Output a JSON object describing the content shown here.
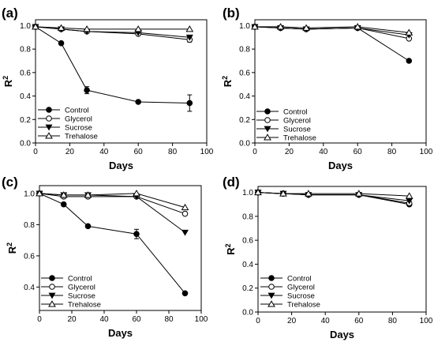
{
  "chart_data": [
    {
      "panel": "(a)",
      "type": "line",
      "xlabel": "Days",
      "ylabel": "R",
      "ylabel_sup": "2",
      "xlim": [
        0,
        100
      ],
      "ylim": [
        0.0,
        1.05
      ],
      "xticks": [
        0,
        20,
        40,
        60,
        80,
        100
      ],
      "yticks": [
        "0.0",
        "0.2",
        "0.4",
        "0.6",
        "0.8",
        "1.0"
      ],
      "yticks_values": [
        0.0,
        0.2,
        0.4,
        0.6,
        0.8,
        1.0
      ],
      "legend_position": "bottom-left",
      "x": [
        0,
        15,
        30,
        60,
        90
      ],
      "series": [
        {
          "name": "Control",
          "marker": "filled-circle",
          "values": [
            0.99,
            0.85,
            0.45,
            0.35,
            0.34
          ],
          "err": [
            0,
            0.01,
            0.03,
            0,
            0.07
          ]
        },
        {
          "name": "Glycerol",
          "marker": "open-circle",
          "values": [
            0.99,
            0.97,
            0.95,
            0.93,
            0.88
          ],
          "err": [
            0,
            0,
            0,
            0,
            0.02
          ]
        },
        {
          "name": "Sucrose",
          "marker": "filled-triangle-down",
          "values": [
            0.99,
            0.97,
            0.95,
            0.94,
            0.9
          ],
          "err": [
            0,
            0,
            0,
            0,
            0
          ]
        },
        {
          "name": "Trehalose",
          "marker": "open-triangle-up",
          "values": [
            0.99,
            0.98,
            0.97,
            0.97,
            0.97
          ],
          "err": [
            0,
            0,
            0,
            0,
            0
          ]
        }
      ]
    },
    {
      "panel": "(b)",
      "type": "line",
      "xlabel": "Days",
      "ylabel": "R",
      "ylabel_sup": "2",
      "xlim": [
        0,
        100
      ],
      "ylim": [
        0.0,
        1.05
      ],
      "xticks": [
        0,
        20,
        40,
        60,
        80,
        100
      ],
      "yticks": [
        "0.0",
        "0.2",
        "0.4",
        "0.6",
        "0.8",
        "1.0"
      ],
      "yticks_values": [
        0.0,
        0.2,
        0.4,
        0.6,
        0.8,
        1.0
      ],
      "legend_position": "bottom-left",
      "x": [
        0,
        15,
        30,
        60,
        90
      ],
      "series": [
        {
          "name": "Control",
          "marker": "filled-circle",
          "values": [
            0.99,
            0.98,
            0.97,
            0.98,
            0.7
          ],
          "err": [
            0,
            0,
            0,
            0,
            0
          ]
        },
        {
          "name": "Glycerol",
          "marker": "open-circle",
          "values": [
            0.99,
            0.98,
            0.97,
            0.98,
            0.89
          ],
          "err": [
            0,
            0,
            0,
            0,
            0
          ]
        },
        {
          "name": "Sucrose",
          "marker": "filled-triangle-down",
          "values": [
            0.99,
            0.98,
            0.97,
            0.98,
            0.92
          ],
          "err": [
            0,
            0,
            0,
            0,
            0
          ]
        },
        {
          "name": "Trehalose",
          "marker": "open-triangle-up",
          "values": [
            0.99,
            0.99,
            0.98,
            0.99,
            0.94
          ],
          "err": [
            0,
            0,
            0,
            0,
            0
          ]
        }
      ]
    },
    {
      "panel": "(c)",
      "type": "line",
      "xlabel": "Days",
      "ylabel": "R",
      "ylabel_sup": "2",
      "xlim": [
        0,
        100
      ],
      "ylim": [
        0.25,
        1.05
      ],
      "xticks": [
        0,
        20,
        40,
        60,
        80,
        100
      ],
      "yticks": [
        "0.4",
        "0.6",
        "0.8",
        "1.0"
      ],
      "yticks_values": [
        0.4,
        0.6,
        0.8,
        1.0
      ],
      "legend_position": "bottom-left",
      "x": [
        0,
        15,
        30,
        60,
        90
      ],
      "series": [
        {
          "name": "Control",
          "marker": "filled-circle",
          "values": [
            1.0,
            0.93,
            0.79,
            0.74,
            0.36
          ],
          "err": [
            0,
            0.01,
            0,
            0.03,
            0
          ]
        },
        {
          "name": "Glycerol",
          "marker": "open-circle",
          "values": [
            1.0,
            0.98,
            0.98,
            0.98,
            0.87
          ],
          "err": [
            0,
            0,
            0,
            0,
            0.01
          ]
        },
        {
          "name": "Sucrose",
          "marker": "filled-triangle-down",
          "values": [
            1.0,
            0.99,
            0.99,
            0.98,
            0.75
          ],
          "err": [
            0,
            0,
            0,
            0,
            0
          ]
        },
        {
          "name": "Trehalose",
          "marker": "open-triangle-up",
          "values": [
            1.0,
            0.99,
            0.99,
            1.0,
            0.91
          ],
          "err": [
            0,
            0,
            0,
            0,
            0
          ]
        }
      ]
    },
    {
      "panel": "(d)",
      "type": "line",
      "xlabel": "Days",
      "ylabel": "R",
      "ylabel_sup": "2",
      "xlim": [
        0,
        100
      ],
      "ylim": [
        0.0,
        1.05
      ],
      "xticks": [
        0,
        20,
        40,
        60,
        80,
        100
      ],
      "yticks": [
        "0.0",
        "0.2",
        "0.4",
        "0.6",
        "0.8",
        "1.0"
      ],
      "yticks_values": [
        0.0,
        0.2,
        0.4,
        0.6,
        0.8,
        1.0
      ],
      "legend_position": "bottom-left",
      "x": [
        0,
        15,
        30,
        60,
        90
      ],
      "series": [
        {
          "name": "Control",
          "marker": "filled-circle",
          "values": [
            1.0,
            0.99,
            0.98,
            0.98,
            0.9
          ],
          "err": [
            0,
            0,
            0,
            0,
            0
          ]
        },
        {
          "name": "Glycerol",
          "marker": "open-circle",
          "values": [
            1.0,
            0.99,
            0.98,
            0.98,
            0.91
          ],
          "err": [
            0,
            0,
            0,
            0,
            0
          ]
        },
        {
          "name": "Sucrose",
          "marker": "filled-triangle-down",
          "values": [
            1.0,
            0.99,
            0.98,
            0.98,
            0.93
          ],
          "err": [
            0,
            0,
            0,
            0,
            0
          ]
        },
        {
          "name": "Trehalose",
          "marker": "open-triangle-up",
          "values": [
            1.0,
            0.99,
            0.99,
            0.99,
            0.97
          ],
          "err": [
            0,
            0,
            0,
            0,
            0
          ]
        }
      ]
    }
  ]
}
